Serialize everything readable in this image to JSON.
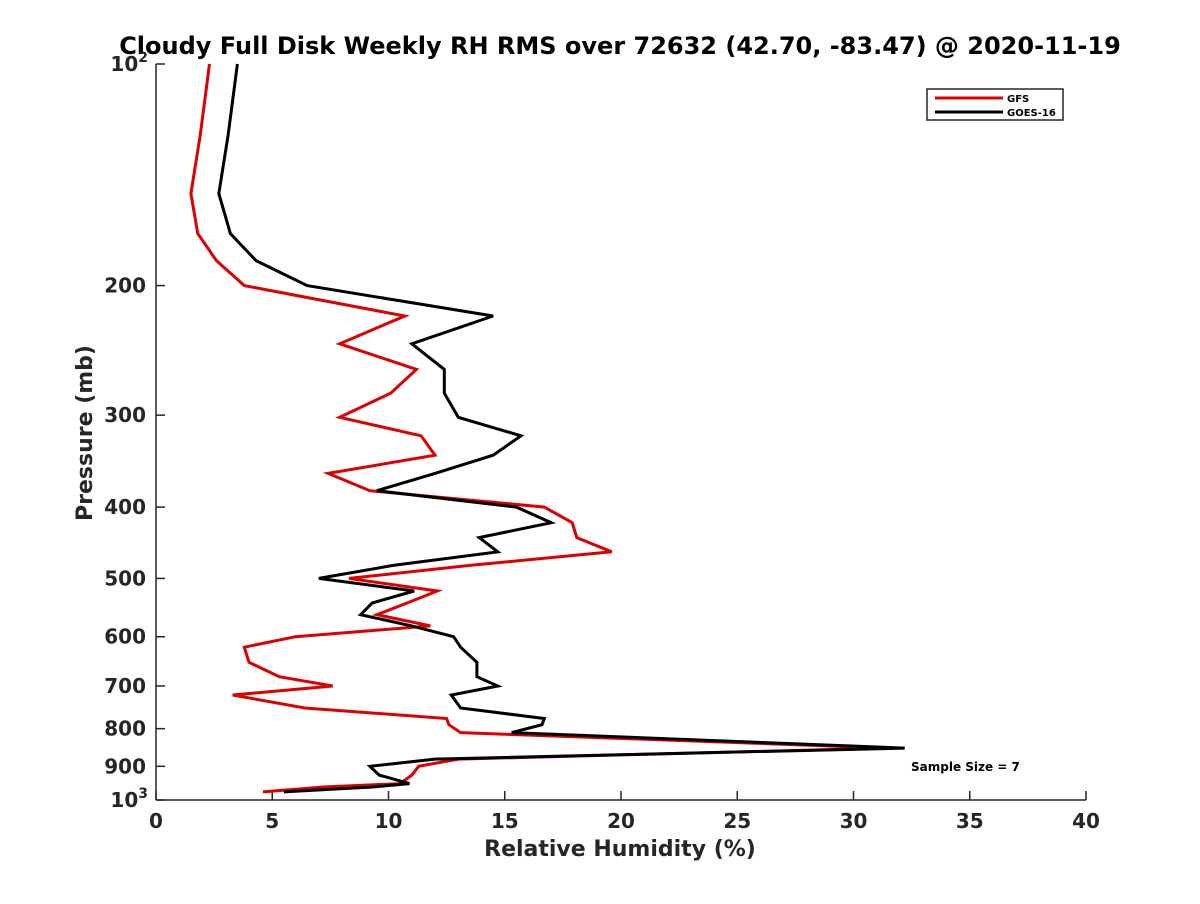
{
  "chart_data": {
    "type": "line",
    "title": "Cloudy Full Disk Weekly RH RMS over 72632 (42.70, -83.47) @ 2020-11-19",
    "xlabel": "Relative Humidity (%)",
    "ylabel": "Pressure (mb)",
    "xlim": [
      0,
      40
    ],
    "ylim": [
      100,
      1000
    ],
    "y_scale": "log",
    "y_reversed": true,
    "grid": false,
    "legend_position": "top-right",
    "annotation": "Sample Size = 7",
    "x_ticks": [
      {
        "value": 0,
        "label": "0"
      },
      {
        "value": 5,
        "label": "5"
      },
      {
        "value": 10,
        "label": "10"
      },
      {
        "value": 15,
        "label": "15"
      },
      {
        "value": 20,
        "label": "20"
      },
      {
        "value": 25,
        "label": "25"
      },
      {
        "value": 30,
        "label": "30"
      },
      {
        "value": 35,
        "label": "35"
      },
      {
        "value": 40,
        "label": "40"
      }
    ],
    "y_ticks": [
      {
        "value": 100,
        "label": "10",
        "sup": "2"
      },
      {
        "value": 200,
        "label": "200"
      },
      {
        "value": 300,
        "label": "300"
      },
      {
        "value": 400,
        "label": "400"
      },
      {
        "value": 500,
        "label": "500"
      },
      {
        "value": 600,
        "label": "600"
      },
      {
        "value": 700,
        "label": "700"
      },
      {
        "value": 800,
        "label": "800"
      },
      {
        "value": 900,
        "label": "900"
      },
      {
        "value": 1000,
        "label": "10",
        "sup": "3"
      }
    ],
    "series": [
      {
        "name": "GFS",
        "color": "#dd0000",
        "points": [
          {
            "x": 2.3,
            "p": 100
          },
          {
            "x": 1.9,
            "p": 125
          },
          {
            "x": 1.5,
            "p": 150
          },
          {
            "x": 1.8,
            "p": 170
          },
          {
            "x": 2.6,
            "p": 185
          },
          {
            "x": 3.8,
            "p": 200
          },
          {
            "x": 10.7,
            "p": 220
          },
          {
            "x": 7.9,
            "p": 240
          },
          {
            "x": 11.2,
            "p": 260
          },
          {
            "x": 10.1,
            "p": 280
          },
          {
            "x": 7.9,
            "p": 302
          },
          {
            "x": 11.4,
            "p": 320
          },
          {
            "x": 12.0,
            "p": 340
          },
          {
            "x": 7.4,
            "p": 360
          },
          {
            "x": 9.2,
            "p": 380
          },
          {
            "x": 16.7,
            "p": 400
          },
          {
            "x": 17.9,
            "p": 420
          },
          {
            "x": 18.1,
            "p": 440
          },
          {
            "x": 19.6,
            "p": 460
          },
          {
            "x": 13.5,
            "p": 480
          },
          {
            "x": 8.3,
            "p": 500
          },
          {
            "x": 12.1,
            "p": 520
          },
          {
            "x": 10.8,
            "p": 540
          },
          {
            "x": 9.5,
            "p": 560
          },
          {
            "x": 11.8,
            "p": 580
          },
          {
            "x": 6.0,
            "p": 600
          },
          {
            "x": 3.8,
            "p": 620
          },
          {
            "x": 4.0,
            "p": 650
          },
          {
            "x": 5.3,
            "p": 680
          },
          {
            "x": 7.6,
            "p": 700
          },
          {
            "x": 3.3,
            "p": 720
          },
          {
            "x": 6.4,
            "p": 750
          },
          {
            "x": 12.5,
            "p": 775
          },
          {
            "x": 12.6,
            "p": 790
          },
          {
            "x": 13.1,
            "p": 810
          },
          {
            "x": 31.5,
            "p": 850
          },
          {
            "x": 13.0,
            "p": 880
          },
          {
            "x": 11.3,
            "p": 900
          },
          {
            "x": 11.0,
            "p": 925
          },
          {
            "x": 10.5,
            "p": 950
          },
          {
            "x": 7.2,
            "p": 960
          },
          {
            "x": 4.6,
            "p": 975
          }
        ]
      },
      {
        "name": "GOES-16",
        "color": "#000000",
        "points": [
          {
            "x": 3.5,
            "p": 100
          },
          {
            "x": 3.1,
            "p": 125
          },
          {
            "x": 2.7,
            "p": 150
          },
          {
            "x": 3.2,
            "p": 170
          },
          {
            "x": 4.3,
            "p": 185
          },
          {
            "x": 6.5,
            "p": 200
          },
          {
            "x": 14.5,
            "p": 220
          },
          {
            "x": 11.0,
            "p": 240
          },
          {
            "x": 12.4,
            "p": 260
          },
          {
            "x": 12.4,
            "p": 280
          },
          {
            "x": 13.0,
            "p": 302
          },
          {
            "x": 15.7,
            "p": 320
          },
          {
            "x": 14.5,
            "p": 340
          },
          {
            "x": 12.0,
            "p": 360
          },
          {
            "x": 9.5,
            "p": 380
          },
          {
            "x": 15.5,
            "p": 400
          },
          {
            "x": 17.0,
            "p": 420
          },
          {
            "x": 13.9,
            "p": 440
          },
          {
            "x": 14.7,
            "p": 460
          },
          {
            "x": 10.2,
            "p": 480
          },
          {
            "x": 7.0,
            "p": 500
          },
          {
            "x": 11.1,
            "p": 520
          },
          {
            "x": 9.3,
            "p": 540
          },
          {
            "x": 8.8,
            "p": 560
          },
          {
            "x": 11.0,
            "p": 580
          },
          {
            "x": 12.8,
            "p": 600
          },
          {
            "x": 13.1,
            "p": 620
          },
          {
            "x": 13.8,
            "p": 650
          },
          {
            "x": 13.8,
            "p": 680
          },
          {
            "x": 14.7,
            "p": 700
          },
          {
            "x": 12.7,
            "p": 720
          },
          {
            "x": 13.1,
            "p": 750
          },
          {
            "x": 16.7,
            "p": 775
          },
          {
            "x": 16.6,
            "p": 790
          },
          {
            "x": 15.3,
            "p": 810
          },
          {
            "x": 32.2,
            "p": 850
          },
          {
            "x": 12.0,
            "p": 880
          },
          {
            "x": 9.2,
            "p": 900
          },
          {
            "x": 9.6,
            "p": 925
          },
          {
            "x": 10.9,
            "p": 950
          },
          {
            "x": 9.3,
            "p": 960
          },
          {
            "x": 5.5,
            "p": 975
          }
        ]
      }
    ]
  }
}
